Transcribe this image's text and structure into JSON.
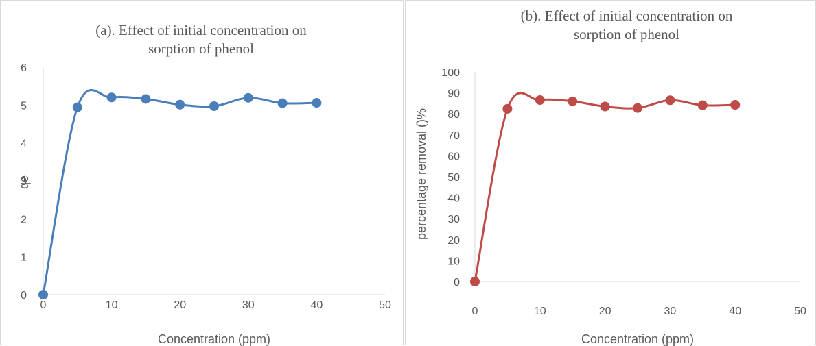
{
  "chart_data": [
    {
      "type": "scatter",
      "title_lines": [
        "(a). Effect of initial concentration on",
        "sorption of phenol"
      ],
      "xlabel": "Concentration (ppm)",
      "ylabel": "qe",
      "xlim": [
        0,
        50
      ],
      "ylim": [
        0,
        6
      ],
      "x_ticks": [
        0,
        10,
        20,
        30,
        40,
        50
      ],
      "y_ticks": [
        0,
        1,
        2,
        3,
        4,
        5,
        6
      ],
      "smooth_line": true,
      "grid": false,
      "color": "#4a7ebb",
      "series": [
        {
          "x": [
            0,
            5,
            10,
            15,
            20,
            25,
            30,
            35,
            40
          ],
          "y": [
            0,
            4.94,
            5.2,
            5.16,
            5.01,
            4.97,
            5.19,
            5.05,
            5.06
          ]
        }
      ]
    },
    {
      "type": "scatter",
      "title_lines": [
        "(b). Effect of initial concentration on",
        "sorption of phenol"
      ],
      "xlabel": "Concentration (ppm)",
      "ylabel": "percentage removal ()%",
      "xlim": [
        0,
        50
      ],
      "ylim": [
        0,
        100
      ],
      "x_ticks": [
        0,
        10,
        20,
        30,
        40,
        50
      ],
      "y_ticks": [
        0,
        10,
        20,
        30,
        40,
        50,
        60,
        70,
        80,
        90,
        100
      ],
      "smooth_line": true,
      "grid": false,
      "color": "#be4b48",
      "series": [
        {
          "x": [
            0,
            5,
            10,
            15,
            20,
            25,
            30,
            35,
            40
          ],
          "y": [
            0,
            82.4,
            86.6,
            86.0,
            83.5,
            82.8,
            86.5,
            84.1,
            84.3
          ]
        }
      ]
    }
  ]
}
